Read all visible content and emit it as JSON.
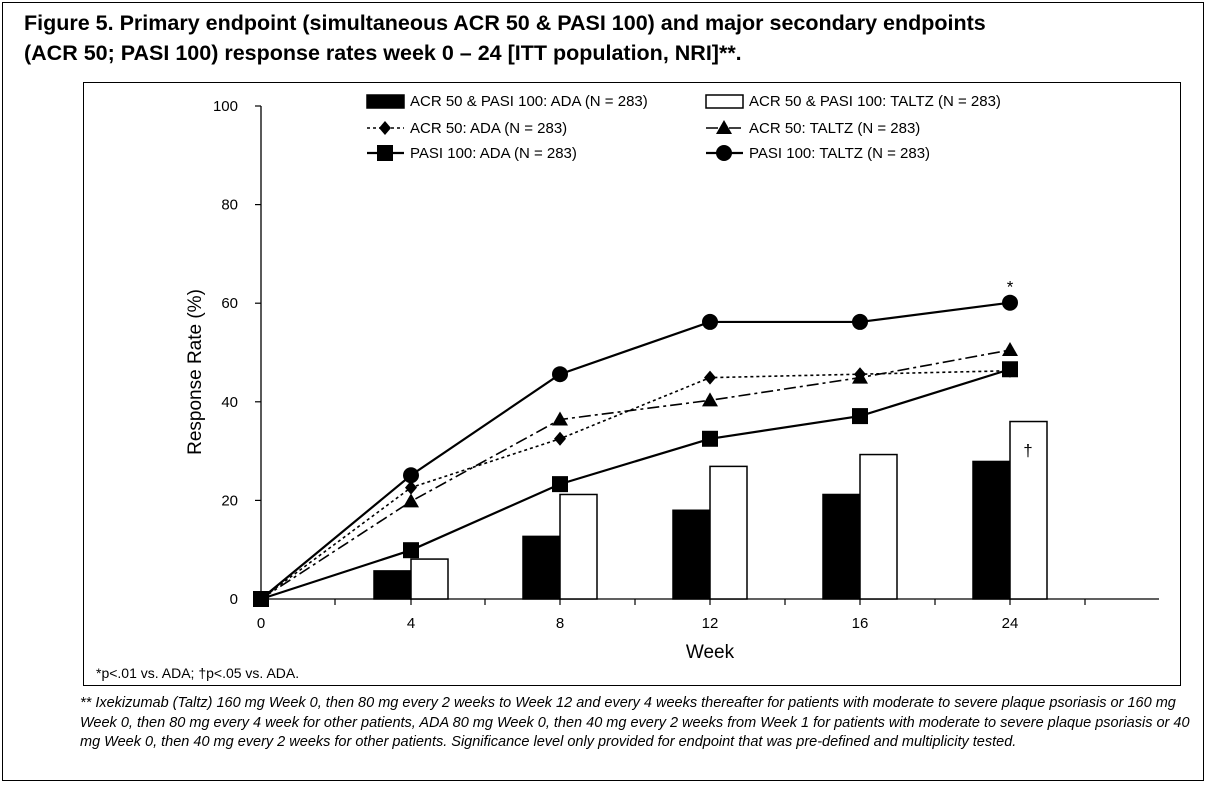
{
  "figure": {
    "title_line1": "Figure 5. Primary endpoint (simultaneous ACR 50 & PASI 100) and major secondary endpoints",
    "title_line2": "(ACR 50; PASI 100) response rates week 0 – 24 [ITT population, NRI]**.",
    "significance_note": "*p<.01 vs. ADA; †p<.05 vs. ADA.",
    "footnote": "** Ixekizumab (Taltz) 160 mg Week 0, then 80 mg every 2 weeks to Week 12 and every 4 weeks thereafter for patients with moderate to severe plaque psoriasis or 160 mg Week 0, then 80 mg every 4 week for other patients, ADA 80 mg Week 0, then 40 mg every 2 weeks from Week 1 for patients with moderate to severe plaque psoriasis or 40 mg Week 0, then 40 mg every 2 weeks for other patients. Significance level only provided for endpoint that was pre-defined and multiplicity tested."
  },
  "chart_data": {
    "type": "bar+line",
    "title": "",
    "xlabel": "Week",
    "ylabel": "Response Rate (%)",
    "ylim": [
      0,
      100
    ],
    "yticks": [
      0,
      20,
      40,
      60,
      80,
      100
    ],
    "categories": [
      "0",
      "4",
      "8",
      "12",
      "16",
      "24"
    ],
    "grid": false,
    "legend_position": "top",
    "bars": [
      {
        "name": "ACR 50 & PASI 100: ADA (N = 283)",
        "fill": "#000000",
        "values": [
          0,
          5.7,
          12.7,
          18.0,
          21.2,
          27.9
        ]
      },
      {
        "name": "ACR 50 & PASI 100: TALTZ (N = 283)",
        "fill": "#ffffff",
        "values": [
          0,
          8.1,
          21.2,
          26.9,
          29.3,
          36.0
        ]
      }
    ],
    "lines": [
      {
        "name": "ACR 50: ADA (N = 283)",
        "marker": "diamond",
        "dash": "dotted",
        "values": [
          0,
          22.6,
          32.5,
          44.9,
          45.6,
          46.3
        ]
      },
      {
        "name": "ACR 50: TALTZ (N = 283)",
        "marker": "triangle",
        "dash": "dashdot",
        "values": [
          0,
          19.8,
          36.4,
          40.3,
          44.9,
          50.5
        ]
      },
      {
        "name": "PASI 100: ADA (N = 283)",
        "marker": "square",
        "dash": "solid",
        "values": [
          0,
          9.9,
          23.3,
          32.5,
          37.1,
          46.6
        ]
      },
      {
        "name": "PASI 100: TALTZ (N = 283)",
        "marker": "circle",
        "dash": "solid",
        "values": [
          0,
          25.1,
          45.6,
          56.2,
          56.2,
          60.1
        ]
      }
    ],
    "annotations": [
      {
        "text": "*",
        "category": "24",
        "series": "PASI 100: TALTZ (N = 283)"
      },
      {
        "text": "†",
        "category": "24",
        "series": "ACR 50 & PASI 100: TALTZ (N = 283)"
      }
    ]
  }
}
